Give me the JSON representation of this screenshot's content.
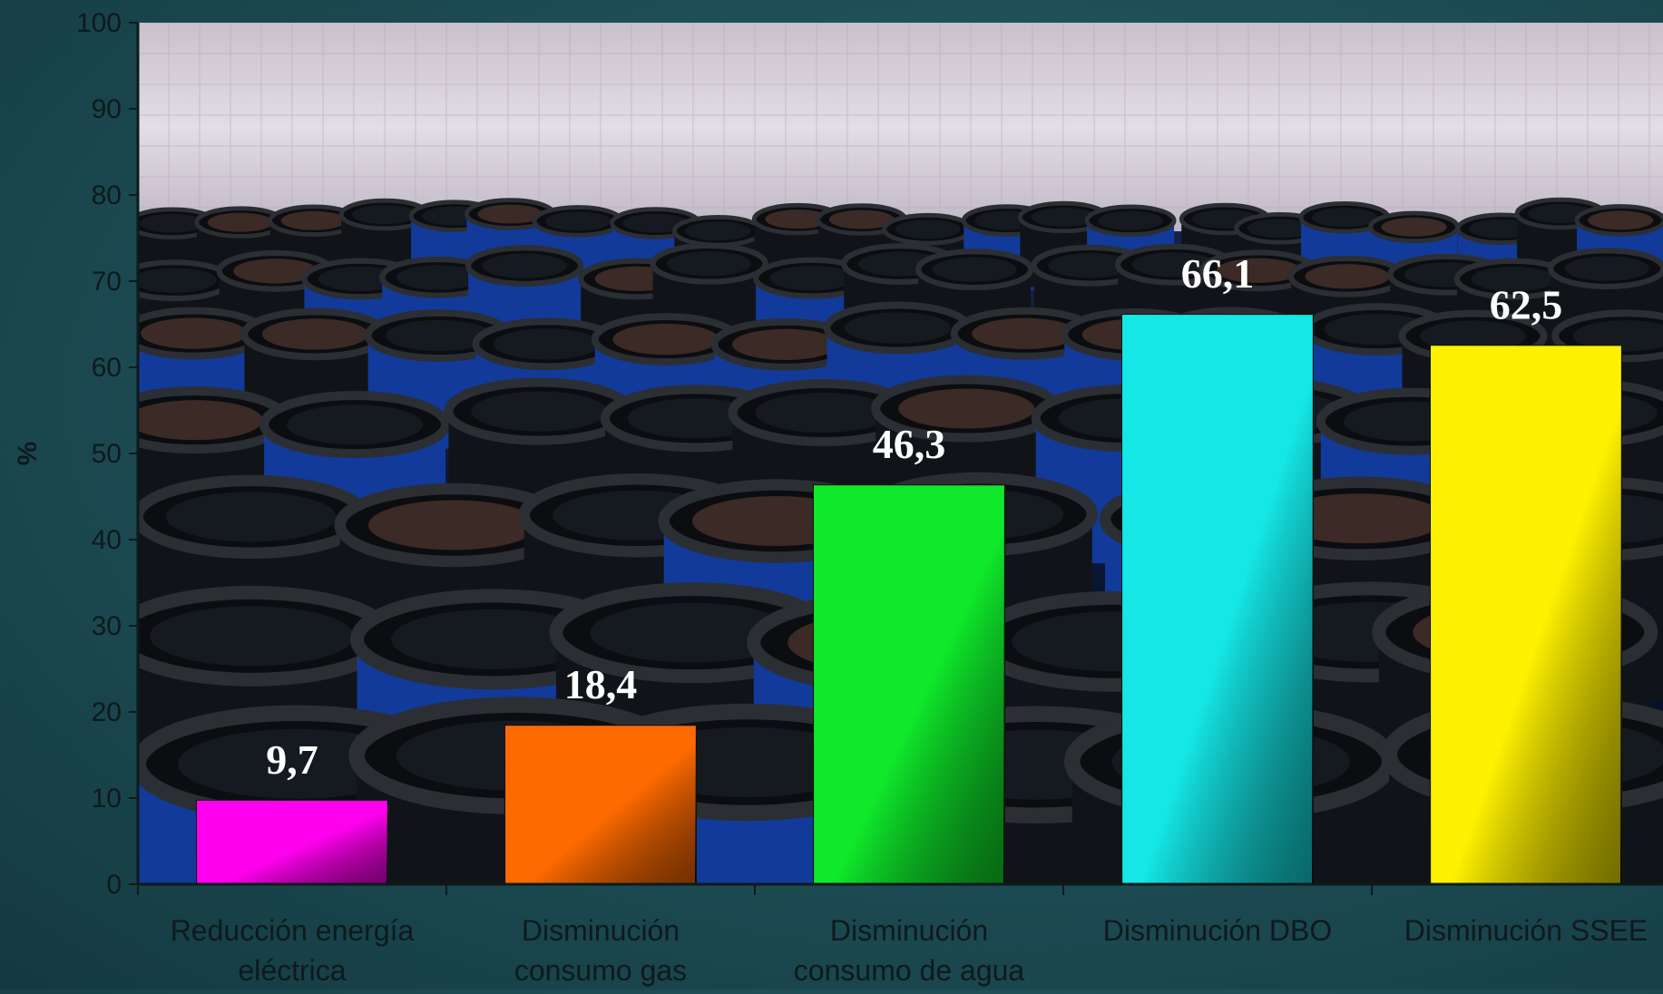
{
  "chart_data": {
    "type": "bar",
    "categories": [
      [
        "Reducción energía",
        "eléctrica"
      ],
      [
        "Disminución",
        "consumo gas"
      ],
      [
        "Disminución",
        "consumo de agua"
      ],
      [
        "Disminución DBO"
      ],
      [
        "Disminución SSEE"
      ]
    ],
    "values": [
      9.7,
      18.4,
      46.3,
      66.1,
      62.5
    ],
    "data_labels": [
      "9,7",
      "18,4",
      "46,3",
      "66,1",
      "62,5"
    ],
    "colors": [
      "#ff00ee",
      "#ff6a00",
      "#0fe82b",
      "#15e6e6",
      "#fff200"
    ],
    "ylabel": "%",
    "ylim": [
      0,
      100
    ],
    "yticks": [
      0,
      10,
      20,
      30,
      40,
      50,
      60,
      70,
      80,
      90,
      100
    ],
    "plot_background": "photo of blue and black plastic barrels in a tiled room",
    "grid": false,
    "legend": "none"
  }
}
